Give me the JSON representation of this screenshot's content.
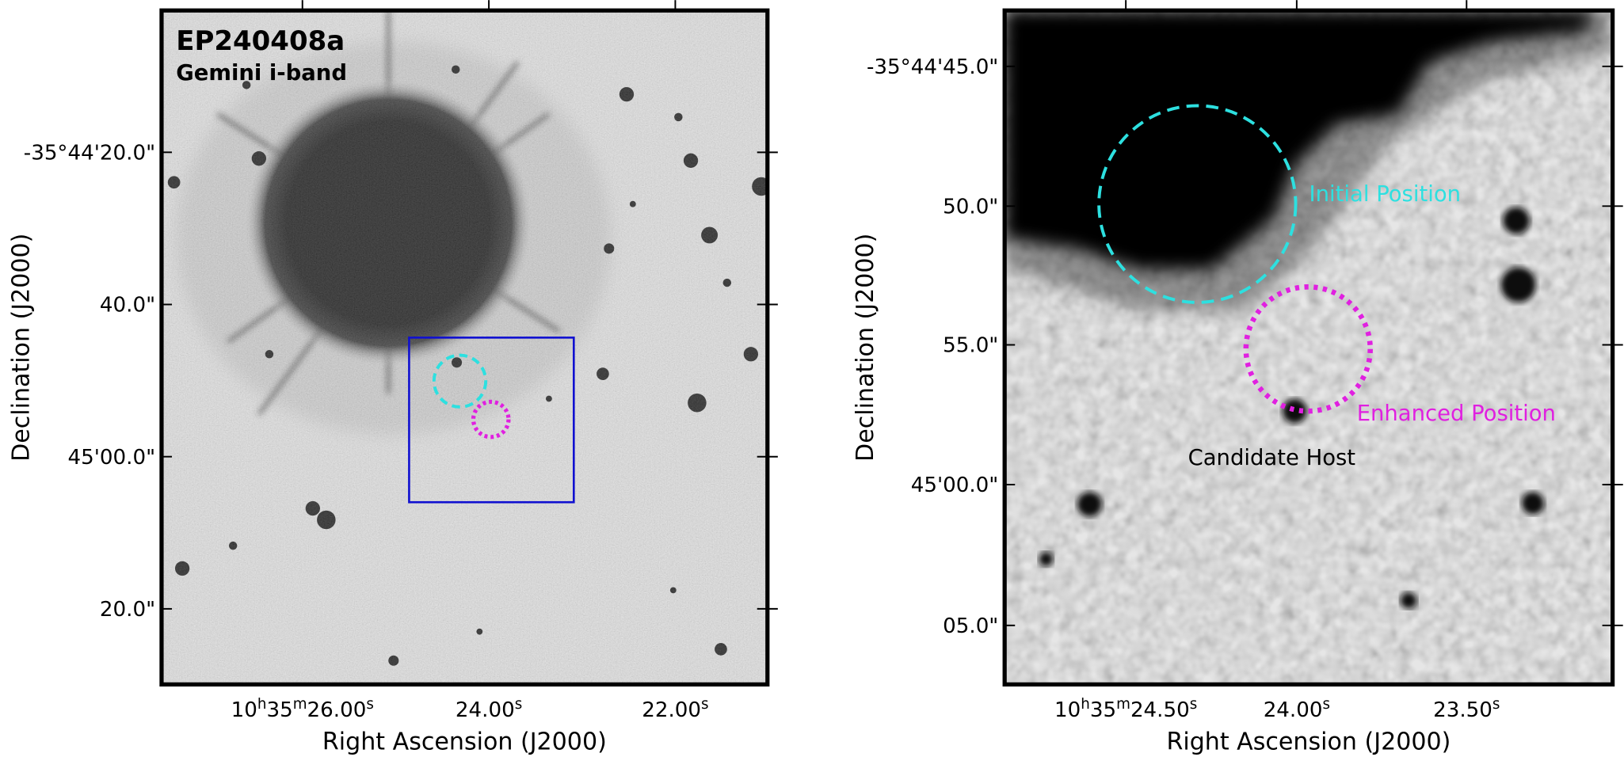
{
  "left_panel": {
    "title": "EP240408a",
    "subtitle": "Gemini i-band",
    "x_axis_label": "Right Ascension (J2000)",
    "y_axis_label": "Declination (J2000)",
    "x_tick_labels": [
      [
        "10",
        "h",
        "35",
        "m",
        "26.00",
        "s"
      ],
      [
        "24.00",
        "s"
      ],
      [
        "22.00",
        "s"
      ]
    ],
    "y_tick_labels": [
      "-35°44'20.0\"",
      "40.0\"",
      "45'00.0\"",
      "20.0\""
    ]
  },
  "right_panel": {
    "x_axis_label": "Right Ascension (J2000)",
    "y_axis_label": "Declination (J2000)",
    "x_tick_labels": [
      [
        "10",
        "h",
        "35",
        "m",
        "24.50",
        "s"
      ],
      [
        "24.00",
        "s"
      ],
      [
        "23.50",
        "s"
      ]
    ],
    "y_tick_labels": [
      "-35°44'45.0\"",
      "50.0\"",
      "55.0\"",
      "45'00.0\"",
      "05.0\""
    ],
    "annotations": {
      "initial": "Initial Position",
      "enhanced": "Enhanced Position",
      "host": "Candidate Host"
    }
  }
}
